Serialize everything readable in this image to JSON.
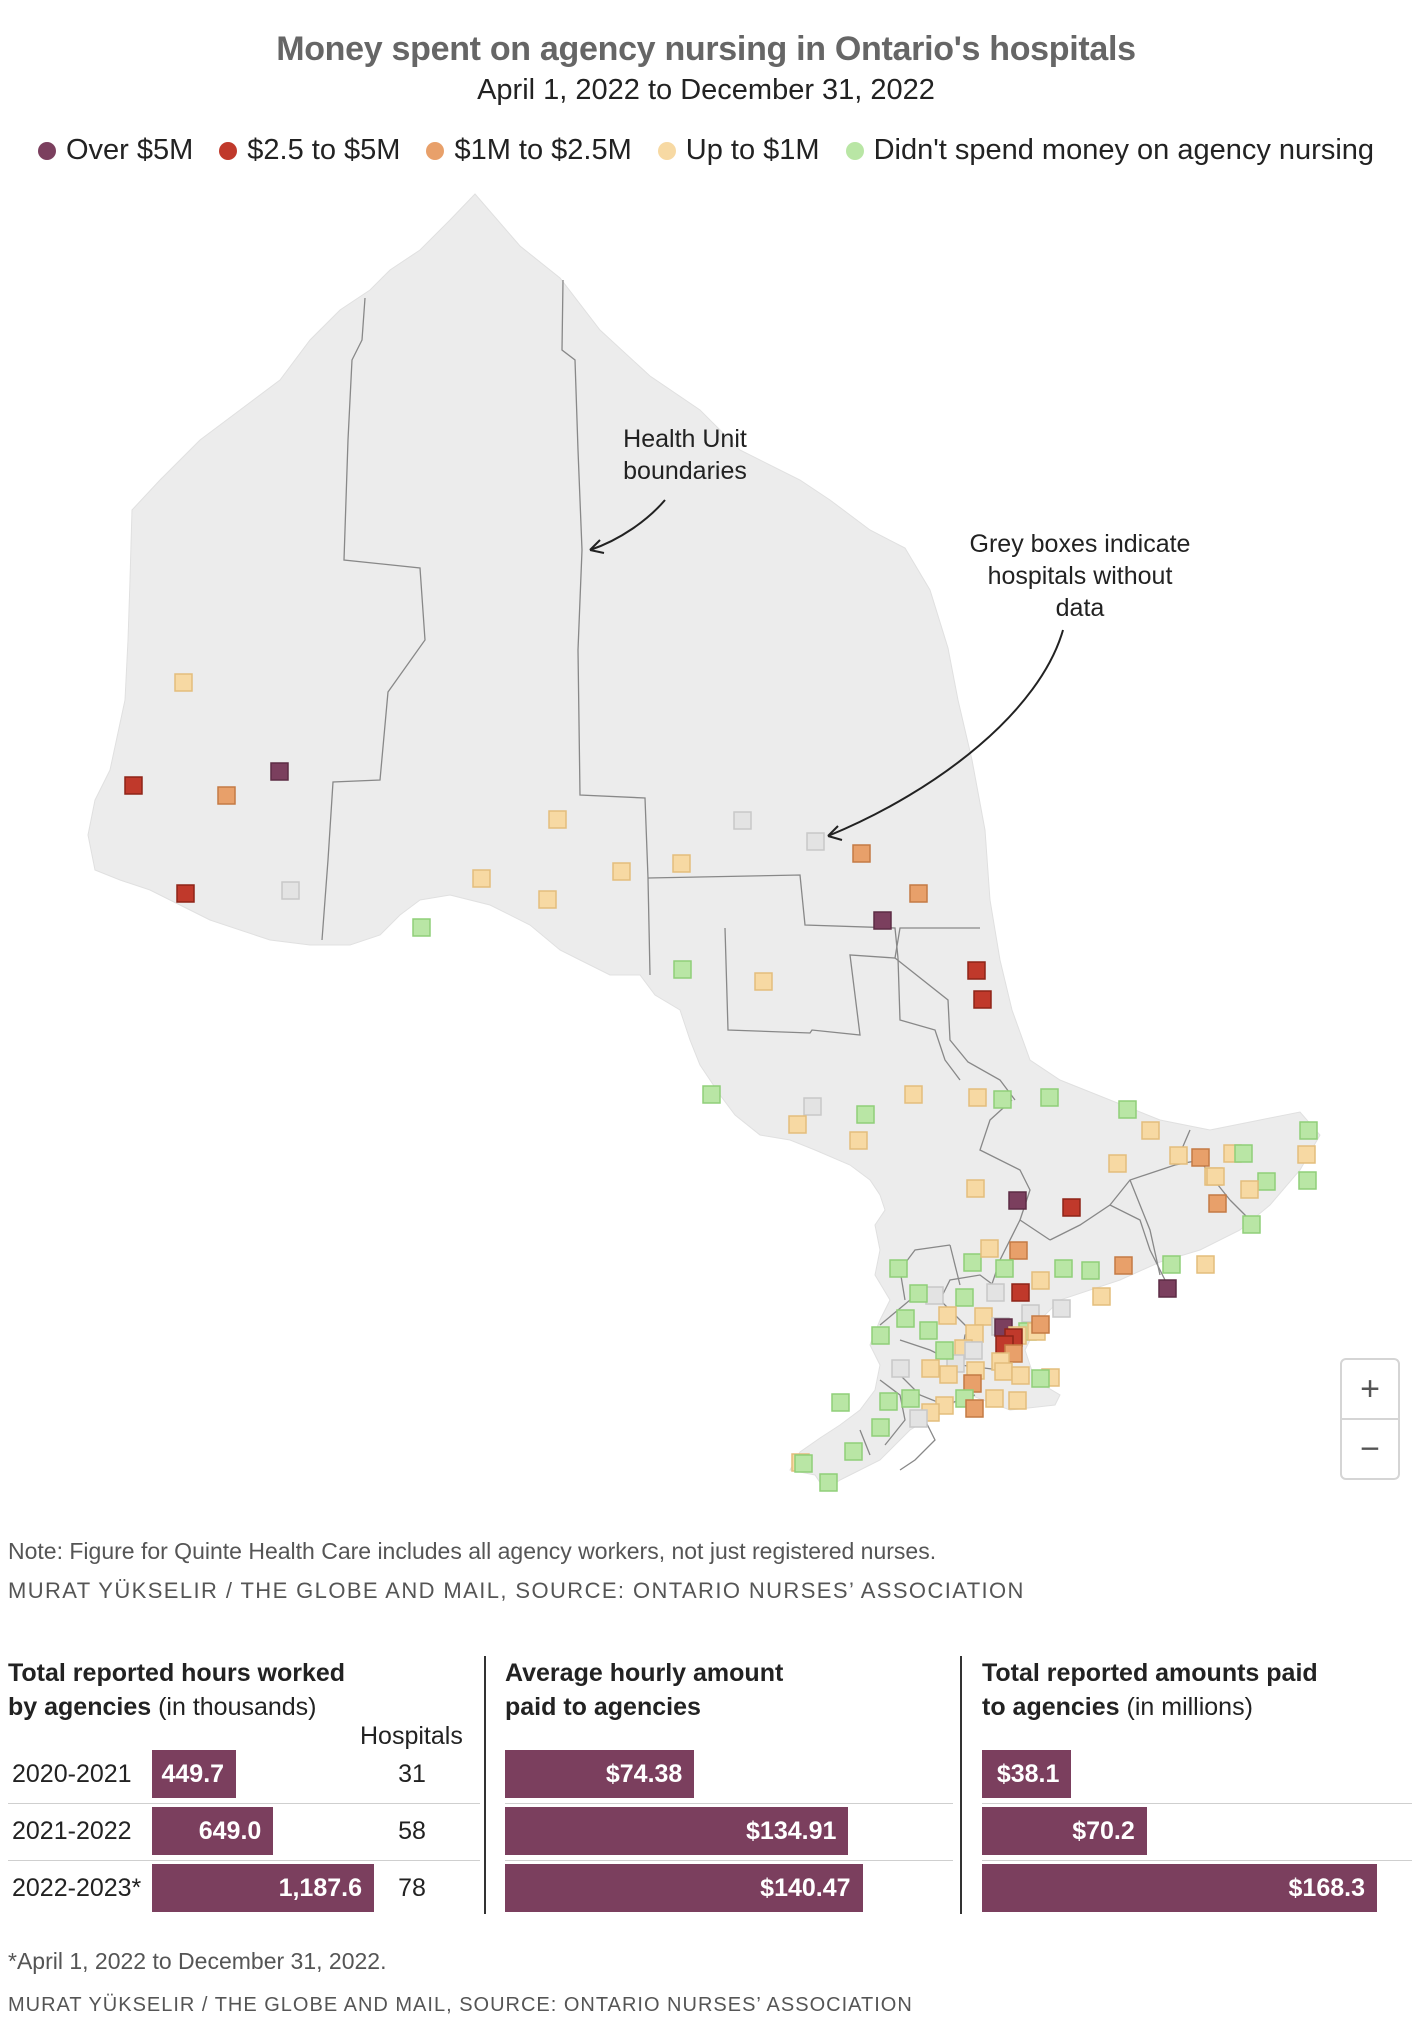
{
  "title": "Money spent on agency nursing in Ontario's hospitals",
  "subtitle": "April 1, 2022 to December 31, 2022",
  "legend": [
    {
      "label": "Over $5M",
      "color": "#7b3f5e"
    },
    {
      "label": "$2.5 to $5M",
      "color": "#c0392b"
    },
    {
      "label": "$1M to $2.5M",
      "color": "#e8a06a"
    },
    {
      "label": "Up to $1M",
      "color": "#f7d9a3"
    },
    {
      "label": "Didn't spend money on agency nursing",
      "color": "#b9e6a5"
    }
  ],
  "no_data_color": "#e3e3e3",
  "annotations": {
    "health_units": "Health Unit boundaries",
    "grey_boxes": "Grey boxes indicate hospitals without data"
  },
  "zoom": {
    "in": "+",
    "out": "−"
  },
  "note": "Note: Figure for Quinte Health Care includes all agency workers, not just registered nurses.",
  "credit_map": "MURAT YÜKSELIR / THE GLOBE AND MAIL, SOURCE: ONTARIO NURSES’ ASSOCIATION",
  "panels": {
    "hours": {
      "title_bold": "Total reported hours worked by agencies",
      "title_rest": " (in thousands)"
    },
    "hourly": {
      "title_bold": "Average hourly amount paid to agencies",
      "title_rest": ""
    },
    "total": {
      "title_bold": "Total reported amounts paid to agencies",
      "title_rest": " (in millions)"
    },
    "hospitals_header": "Hospitals"
  },
  "rows": [
    {
      "year": "2020-2021",
      "hours": 449.7,
      "hours_label": "449.7",
      "hospitals": "31",
      "hourly": 74.38,
      "hourly_label": "$74.38",
      "total": 38.1,
      "total_label": "$38.1"
    },
    {
      "year": "2021-2022",
      "hours": 649.0,
      "hours_label": "649.0",
      "hospitals": "58",
      "hourly": 134.91,
      "hourly_label": "$134.91",
      "total": 70.2,
      "total_label": "$70.2"
    },
    {
      "year": "2022-2023*",
      "hours": 1187.6,
      "hours_label": "1,187.6",
      "hospitals": "78",
      "hourly": 140.47,
      "hourly_label": "$140.47",
      "total": 168.3,
      "total_label": "$168.3"
    }
  ],
  "footnote": "*April 1, 2022 to December 31, 2022.",
  "credit_table": "MURAT YÜKSELIR / THE GLOBE AND MAIL, SOURCE: ONTARIO NURSES’ ASSOCIATION"
}
